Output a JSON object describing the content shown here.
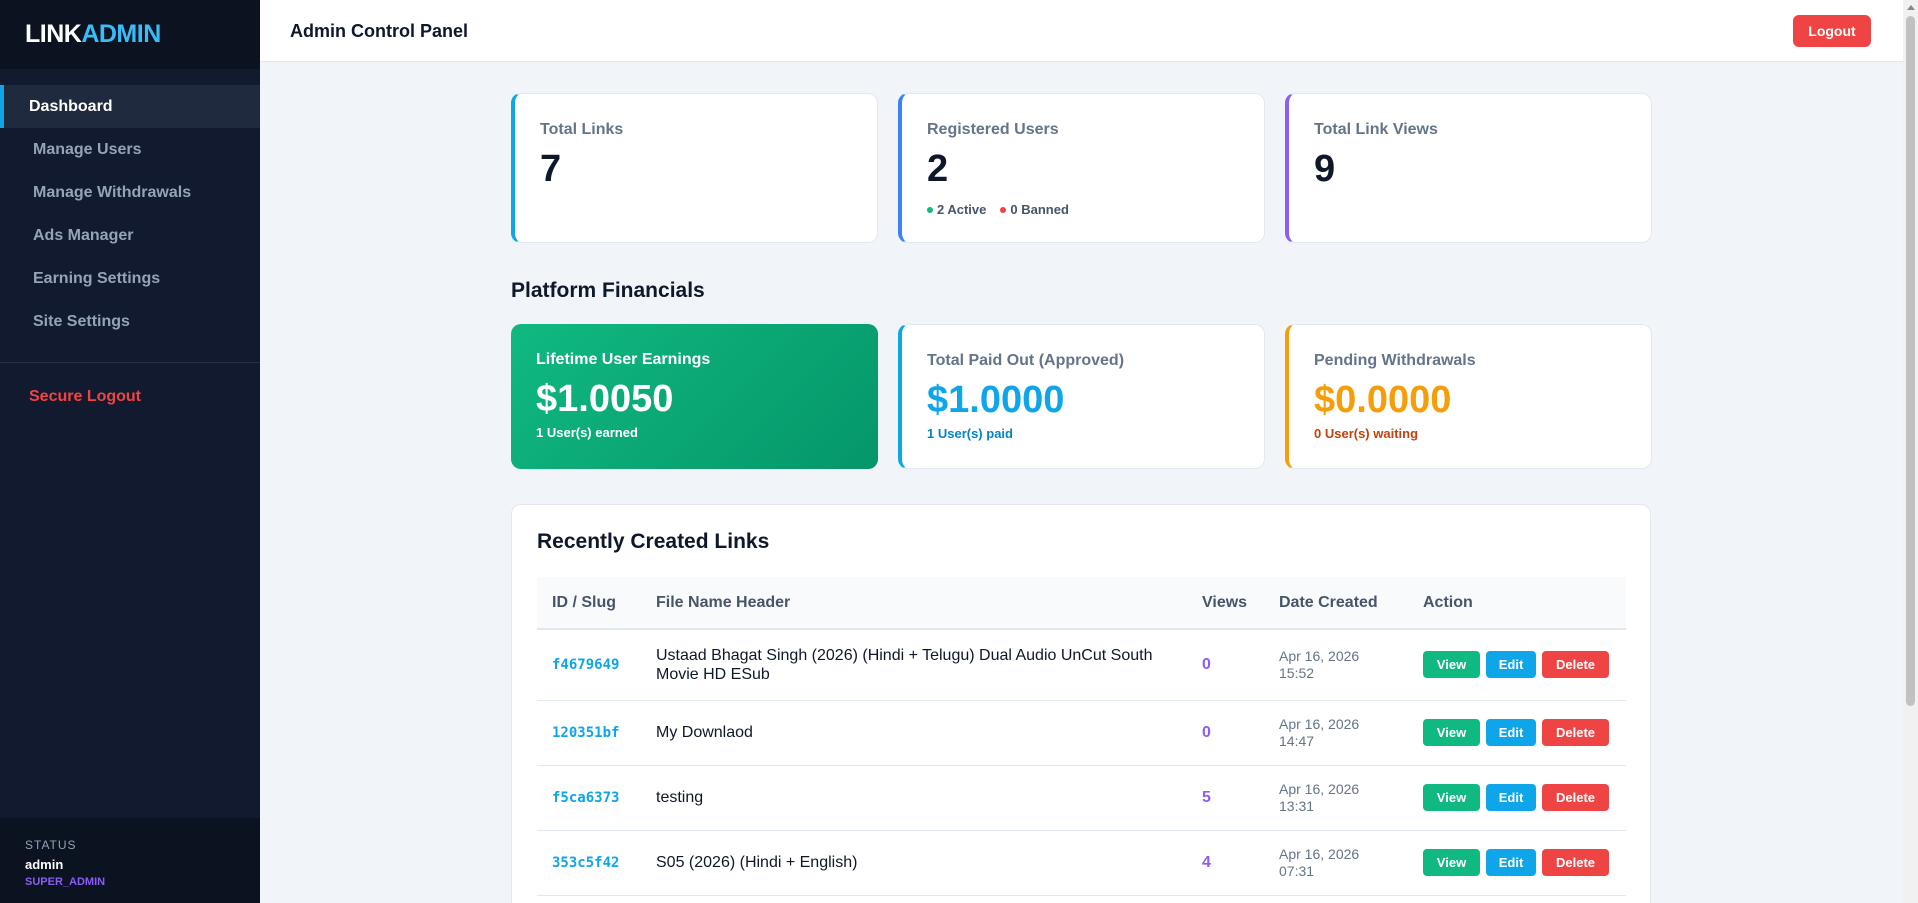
{
  "sidebar": {
    "brand_part1": "LINK",
    "brand_part2": "ADMIN",
    "items": [
      {
        "label": "Dashboard"
      },
      {
        "label": "Manage Users"
      },
      {
        "label": "Manage Withdrawals"
      },
      {
        "label": "Ads Manager"
      },
      {
        "label": "Earning Settings"
      },
      {
        "label": "Site Settings"
      }
    ],
    "logout_label": "Secure Logout",
    "status_label": "STATUS",
    "status_user": "admin",
    "status_role": "SUPER_ADMIN"
  },
  "header": {
    "title": "Admin Control Panel",
    "logout_label": "Logout"
  },
  "stats": {
    "total_links": {
      "label": "Total Links",
      "value": "7"
    },
    "registered_users": {
      "label": "Registered Users",
      "value": "2",
      "active": "2 Active",
      "banned": "0 Banned"
    },
    "total_views": {
      "label": "Total Link Views",
      "value": "9"
    }
  },
  "financials": {
    "title": "Platform Financials",
    "lifetime": {
      "label": "Lifetime User Earnings",
      "amount": "$1.0050",
      "sub": "1 User(s) earned"
    },
    "paid": {
      "label": "Total Paid Out (Approved)",
      "amount": "$1.0000",
      "sub": "1 User(s) paid"
    },
    "pending": {
      "label": "Pending Withdrawals",
      "amount": "$0.0000",
      "sub": "0 User(s) waiting"
    }
  },
  "links_table": {
    "title": "Recently Created Links",
    "headers": [
      "ID / Slug",
      "File Name Header",
      "Views",
      "Date Created",
      "Action"
    ],
    "actions": {
      "view": "View",
      "edit": "Edit",
      "delete": "Delete"
    },
    "rows": [
      {
        "slug": "f4679649",
        "name": "Ustaad Bhagat Singh (2026) (Hindi + Telugu) Dual Audio UnCut South Movie HD ESub",
        "views": "0",
        "date": "Apr 16, 2026",
        "time": "15:52"
      },
      {
        "slug": "120351bf",
        "name": "My Downlaod",
        "views": "0",
        "date": "Apr 16, 2026",
        "time": "14:47"
      },
      {
        "slug": "f5ca6373",
        "name": "testing",
        "views": "5",
        "date": "Apr 16, 2026",
        "time": "13:31"
      },
      {
        "slug": "353c5f42",
        "name": "S05 (2026) (Hindi + English)",
        "views": "4",
        "date": "Apr 16, 2026",
        "time": "07:31"
      }
    ]
  },
  "colors": {
    "accent": "#0ea5e9",
    "green": "#10b981",
    "purple": "#8b5cf6",
    "orange": "#f59e0b",
    "red": "#ef4444"
  }
}
